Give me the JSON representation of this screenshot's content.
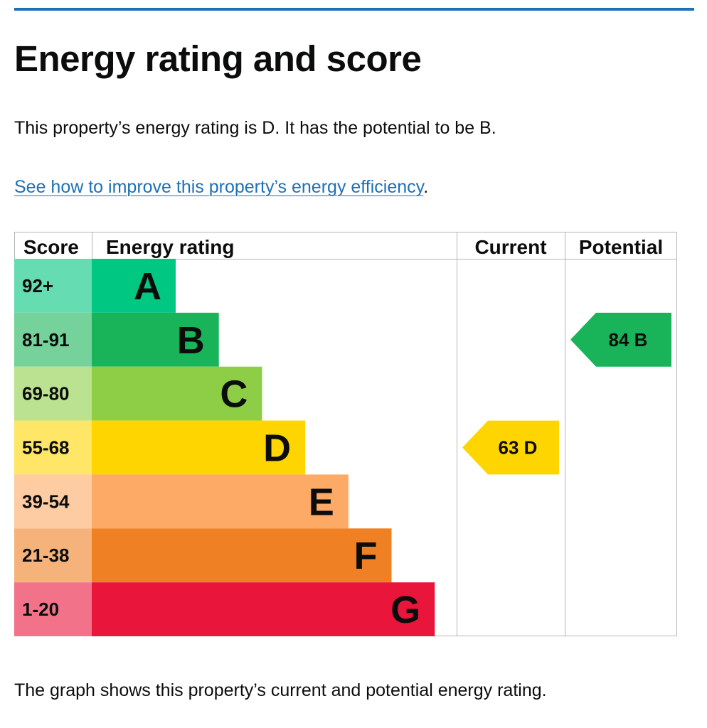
{
  "page": {
    "heading": "Energy rating and score",
    "intro": "This property’s energy rating is D. It has the potential to be B.",
    "link_text": "See how to improve this property’s energy efficiency",
    "link_trailing": ".",
    "footer": "The graph shows this property’s current and potential energy rating."
  },
  "colors": {
    "link": "#1d70b8",
    "band_colors": [
      "#00c781",
      "#19b459",
      "#8dce46",
      "#ffd500",
      "#fcaa65",
      "#ef8023",
      "#e9153b"
    ],
    "score_colors": [
      "#66dcb3",
      "#75d29b",
      "#bbe290",
      "#ffe666",
      "#fdcca3",
      "#f5b37b",
      "#f27389"
    ]
  },
  "chart_data": {
    "type": "bar",
    "title": "",
    "headers": {
      "score": "Score",
      "rating": "Energy rating",
      "current": "Current",
      "potential": "Potential"
    },
    "categories": [
      "A",
      "B",
      "C",
      "D",
      "E",
      "F",
      "G"
    ],
    "score_ranges": [
      "92+",
      "81-91",
      "69-80",
      "55-68",
      "39-54",
      "21-38",
      "1-20"
    ],
    "current": {
      "score": 63,
      "band": "D",
      "label": "63  D"
    },
    "potential": {
      "score": 84,
      "band": "B",
      "label": "84  B"
    }
  }
}
